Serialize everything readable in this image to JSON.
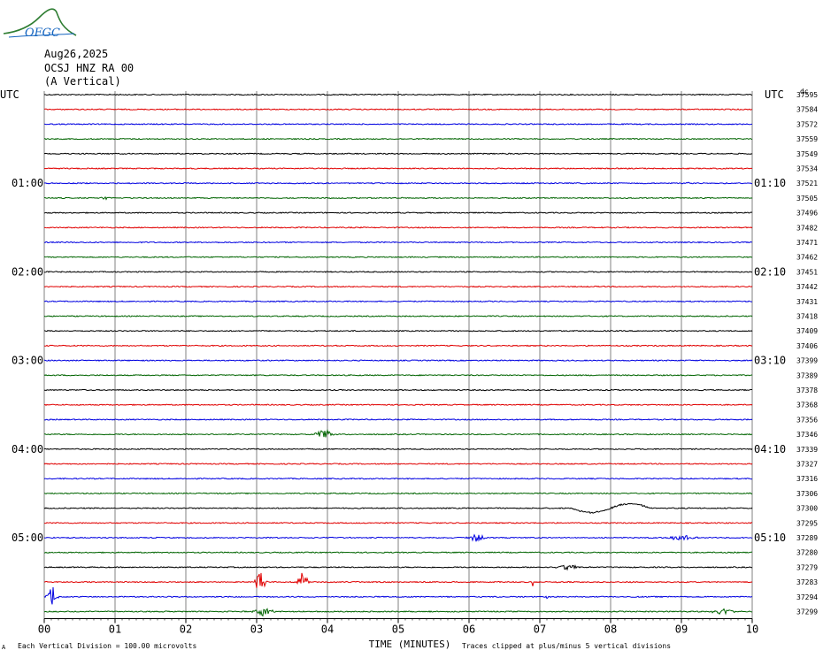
{
  "header": {
    "logo_text": "OFGC",
    "date": "Aug26,2025",
    "station": "OCSJ HNZ RA 00",
    "component": "(A Vertical)",
    "utc_left": "UTC",
    "utc_right": "UTC",
    "top_right_mark": "dc"
  },
  "footer": {
    "left_mark": "A",
    "scale_note": "Each Vertical Division =  100.00 microvolts",
    "xlabel": "TIME (MINUTES)",
    "clip_note": "Traces clipped at plus/minus 5 vertical divisions"
  },
  "colors": {
    "black": "#000000",
    "red": "#e00000",
    "blue": "#0000e0",
    "green": "#006400",
    "grid": "#808080"
  },
  "chart_data": {
    "type": "line",
    "xlabel": "TIME (MINUTES)",
    "xlim": [
      0,
      10
    ],
    "x_ticks": [
      "00",
      "01",
      "02",
      "03",
      "04",
      "05",
      "06",
      "07",
      "08",
      "09",
      "10"
    ],
    "trace_color_cycle": [
      "black",
      "red",
      "blue",
      "green"
    ],
    "left_hour_labels": [
      {
        "trace": 6,
        "label": "01:00"
      },
      {
        "trace": 12,
        "label": "02:00"
      },
      {
        "trace": 18,
        "label": "03:00"
      },
      {
        "trace": 24,
        "label": "04:00"
      },
      {
        "trace": 30,
        "label": "05:00"
      }
    ],
    "right_hour_labels": [
      {
        "trace": 6,
        "label": "01:10"
      },
      {
        "trace": 12,
        "label": "02:10"
      },
      {
        "trace": 18,
        "label": "03:10"
      },
      {
        "trace": 24,
        "label": "04:10"
      },
      {
        "trace": 30,
        "label": "05:10"
      }
    ],
    "trace_values": [
      "37595",
      "37584",
      "37572",
      "37559",
      "37549",
      "37534",
      "37521",
      "37505",
      "37496",
      "37482",
      "37471",
      "37462",
      "37451",
      "37442",
      "37431",
      "37418",
      "37409",
      "37406",
      "37399",
      "37389",
      "37378",
      "37368",
      "37356",
      "37346",
      "37339",
      "37327",
      "37316",
      "37306",
      "37300",
      "37295",
      "37289",
      "37280",
      "37279",
      "37283",
      "37294",
      "37299"
    ],
    "events": [
      {
        "trace": 7,
        "x": 0.85,
        "amp": 3,
        "w": 0.12
      },
      {
        "trace": 6,
        "x": 9.1,
        "amp": 2,
        "w": 0.06
      },
      {
        "trace": 23,
        "x": 3.95,
        "amp": 5,
        "w": 0.35
      },
      {
        "trace": 28,
        "x": 8.0,
        "amp": 5,
        "w": 1.1,
        "kind": "wave"
      },
      {
        "trace": 30,
        "x": 6.1,
        "amp": 4,
        "w": 0.35
      },
      {
        "trace": 30,
        "x": 9.0,
        "amp": 3,
        "w": 0.5
      },
      {
        "trace": 32,
        "x": 7.4,
        "amp": 3,
        "w": 0.4
      },
      {
        "trace": 33,
        "x": 2.0,
        "amp": 4,
        "w": 0.02
      },
      {
        "trace": 33,
        "x": 3.05,
        "amp": 14,
        "w": 0.18
      },
      {
        "trace": 33,
        "x": 3.65,
        "amp": 12,
        "w": 0.18
      },
      {
        "trace": 33,
        "x": 6.9,
        "amp": 6,
        "w": 0.03
      },
      {
        "trace": 34,
        "x": 0.12,
        "amp": 12,
        "w": 0.2
      },
      {
        "trace": 34,
        "x": 7.1,
        "amp": 6,
        "w": 0.03
      },
      {
        "trace": 35,
        "x": 3.1,
        "amp": 5,
        "w": 0.4
      },
      {
        "trace": 35,
        "x": 9.6,
        "amp": 4,
        "w": 0.4
      }
    ]
  }
}
